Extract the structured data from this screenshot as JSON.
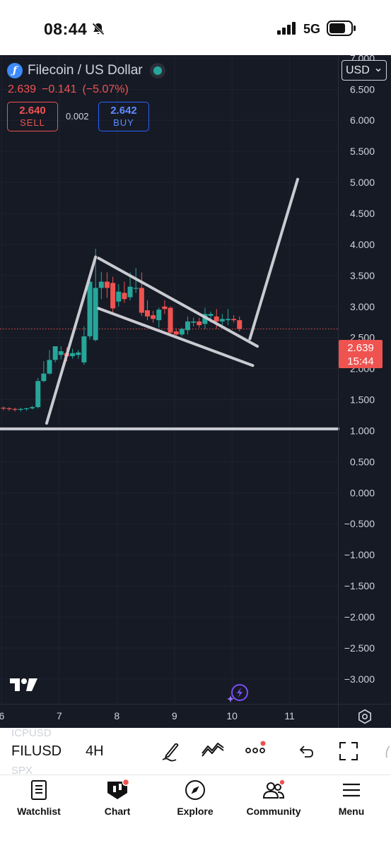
{
  "status_bar": {
    "time": "08:44",
    "network": "5G"
  },
  "header": {
    "symbol_title": "Filecoin / US Dollar",
    "coin_icon": "filecoin-icon",
    "last_price": "2.639",
    "change": "−0.141",
    "change_percent": "(−5.07%)",
    "sell_price": "2.640",
    "sell_label": "SELL",
    "spread": "0.002",
    "buy_price": "2.642",
    "buy_label": "BUY",
    "currency": "USD"
  },
  "price_tag": {
    "price": "2.639",
    "countdown": "15:44"
  },
  "chart_data": {
    "type": "candlestick",
    "x_axis_labels": [
      {
        "x": 6,
        "label": "6"
      },
      {
        "x": 7,
        "label": "7"
      },
      {
        "x": 8,
        "label": "8"
      },
      {
        "x": 9,
        "label": "9"
      },
      {
        "x": 10,
        "label": "10"
      },
      {
        "x": 11,
        "label": "11"
      }
    ],
    "y_ticks": [
      {
        "value": 7.0,
        "label": "7.000"
      },
      {
        "value": 6.5,
        "label": "6.500"
      },
      {
        "value": 6.0,
        "label": "6.000"
      },
      {
        "value": 5.5,
        "label": "5.500"
      },
      {
        "value": 5.0,
        "label": "5.000"
      },
      {
        "value": 4.5,
        "label": "4.500"
      },
      {
        "value": 4.0,
        "label": "4.000"
      },
      {
        "value": 3.5,
        "label": "3.500"
      },
      {
        "value": 3.0,
        "label": "3.000"
      },
      {
        "value": 2.5,
        "label": "2.500"
      },
      {
        "value": 2.0,
        "label": "2.000"
      },
      {
        "value": 1.5,
        "label": "1.500"
      },
      {
        "value": 1.0,
        "label": "1.000"
      },
      {
        "value": 0.5,
        "label": "0.500"
      },
      {
        "value": 0.0,
        "label": "0.000"
      },
      {
        "value": -0.5,
        "label": "−0.500"
      },
      {
        "value": -1.0,
        "label": "−1.000"
      },
      {
        "value": -1.5,
        "label": "−1.500"
      },
      {
        "value": -2.0,
        "label": "−2.000"
      },
      {
        "value": -2.5,
        "label": "−2.500"
      },
      {
        "value": -3.0,
        "label": "−3.000"
      }
    ],
    "ylim": [
      -3.4,
      7.05
    ],
    "xlim": [
      5.97,
      11.84
    ],
    "grid": true,
    "up_color": "#26a69a",
    "down_color": "#ef5350",
    "candles": [
      {
        "t": 6.03,
        "o": 1.37,
        "h": 1.39,
        "l": 1.33,
        "c": 1.36
      },
      {
        "t": 6.13,
        "o": 1.36,
        "h": 1.38,
        "l": 1.32,
        "c": 1.35
      },
      {
        "t": 6.23,
        "o": 1.35,
        "h": 1.37,
        "l": 1.31,
        "c": 1.34
      },
      {
        "t": 6.33,
        "o": 1.34,
        "h": 1.37,
        "l": 1.31,
        "c": 1.35
      },
      {
        "t": 6.43,
        "o": 1.35,
        "h": 1.37,
        "l": 1.32,
        "c": 1.36
      },
      {
        "t": 6.53,
        "o": 1.36,
        "h": 1.4,
        "l": 1.34,
        "c": 1.38
      },
      {
        "t": 6.63,
        "o": 1.38,
        "h": 1.85,
        "l": 1.36,
        "c": 1.8
      },
      {
        "t": 6.73,
        "o": 1.8,
        "h": 2.12,
        "l": 1.78,
        "c": 1.92
      },
      {
        "t": 6.83,
        "o": 1.92,
        "h": 2.3,
        "l": 1.9,
        "c": 2.14
      },
      {
        "t": 6.93,
        "o": 2.14,
        "h": 2.35,
        "l": 2.1,
        "c": 2.36
      },
      {
        "t": 7.03,
        "o": 2.22,
        "h": 2.36,
        "l": 2.15,
        "c": 2.28
      },
      {
        "t": 7.13,
        "o": 2.25,
        "h": 2.34,
        "l": 2.12,
        "c": 2.2
      },
      {
        "t": 7.23,
        "o": 2.2,
        "h": 2.32,
        "l": 2.16,
        "c": 2.25
      },
      {
        "t": 7.33,
        "o": 2.22,
        "h": 2.3,
        "l": 2.16,
        "c": 2.26
      },
      {
        "t": 7.43,
        "o": 2.1,
        "h": 2.68,
        "l": 2.06,
        "c": 2.52
      },
      {
        "t": 7.53,
        "o": 2.52,
        "h": 3.45,
        "l": 2.47,
        "c": 3.4
      },
      {
        "t": 7.63,
        "o": 2.46,
        "h": 3.93,
        "l": 2.44,
        "c": 3.3
      },
      {
        "t": 7.73,
        "o": 3.3,
        "h": 3.56,
        "l": 3.12,
        "c": 3.4
      },
      {
        "t": 7.83,
        "o": 3.4,
        "h": 3.55,
        "l": 3.14,
        "c": 3.3
      },
      {
        "t": 7.93,
        "o": 3.38,
        "h": 3.48,
        "l": 2.9,
        "c": 2.97
      },
      {
        "t": 8.03,
        "o": 3.08,
        "h": 3.36,
        "l": 3.0,
        "c": 3.24
      },
      {
        "t": 8.13,
        "o": 3.22,
        "h": 3.4,
        "l": 3.06,
        "c": 3.12
      },
      {
        "t": 8.23,
        "o": 3.15,
        "h": 3.55,
        "l": 3.1,
        "c": 3.32
      },
      {
        "t": 8.33,
        "o": 3.3,
        "h": 3.62,
        "l": 3.22,
        "c": 3.3
      },
      {
        "t": 8.43,
        "o": 3.3,
        "h": 3.55,
        "l": 2.85,
        "c": 2.9
      },
      {
        "t": 8.53,
        "o": 2.94,
        "h": 3.1,
        "l": 2.78,
        "c": 2.84
      },
      {
        "t": 8.63,
        "o": 2.86,
        "h": 2.93,
        "l": 2.74,
        "c": 2.8
      },
      {
        "t": 8.73,
        "o": 2.78,
        "h": 2.98,
        "l": 2.66,
        "c": 2.95
      },
      {
        "t": 8.83,
        "o": 3.0,
        "h": 3.1,
        "l": 2.88,
        "c": 2.96
      },
      {
        "t": 8.93,
        "o": 2.98,
        "h": 3.0,
        "l": 2.55,
        "c": 2.58
      },
      {
        "t": 9.03,
        "o": 2.6,
        "h": 2.65,
        "l": 2.48,
        "c": 2.55
      },
      {
        "t": 9.13,
        "o": 2.55,
        "h": 2.66,
        "l": 2.52,
        "c": 2.64
      },
      {
        "t": 9.23,
        "o": 2.62,
        "h": 2.84,
        "l": 2.55,
        "c": 2.76
      },
      {
        "t": 9.33,
        "o": 2.74,
        "h": 2.82,
        "l": 2.68,
        "c": 2.76
      },
      {
        "t": 9.43,
        "o": 2.76,
        "h": 2.82,
        "l": 2.66,
        "c": 2.7
      },
      {
        "t": 9.53,
        "o": 2.72,
        "h": 2.98,
        "l": 2.64,
        "c": 2.88
      },
      {
        "t": 9.63,
        "o": 2.85,
        "h": 2.92,
        "l": 2.74,
        "c": 2.88
      },
      {
        "t": 9.73,
        "o": 2.84,
        "h": 2.96,
        "l": 2.64,
        "c": 2.76
      },
      {
        "t": 9.83,
        "o": 2.76,
        "h": 2.88,
        "l": 2.7,
        "c": 2.8
      },
      {
        "t": 9.93,
        "o": 2.78,
        "h": 2.96,
        "l": 2.7,
        "c": 2.8
      },
      {
        "t": 10.03,
        "o": 2.8,
        "h": 2.86,
        "l": 2.74,
        "c": 2.78
      },
      {
        "t": 10.13,
        "o": 2.78,
        "h": 2.84,
        "l": 2.6,
        "c": 2.64
      }
    ],
    "drawings": [
      {
        "name": "flagpole-line",
        "points": [
          [
            6.78,
            1.12
          ],
          [
            7.63,
            3.8
          ]
        ]
      },
      {
        "name": "flag-upper-line",
        "points": [
          [
            7.68,
            3.78
          ],
          [
            10.44,
            2.36
          ]
        ]
      },
      {
        "name": "flag-lower-line",
        "points": [
          [
            7.68,
            2.97
          ],
          [
            10.36,
            2.05
          ]
        ]
      },
      {
        "name": "breakout-line",
        "points": [
          [
            10.31,
            2.48
          ],
          [
            11.14,
            5.05
          ]
        ]
      },
      {
        "name": "support-line",
        "points": [
          [
            5.97,
            1.03
          ],
          [
            11.84,
            1.03
          ]
        ]
      }
    ],
    "last_price": 2.639
  },
  "toolbar": {
    "symbol": "FILUSD",
    "interval": "4H",
    "ghost_above": "ICPUSD",
    "ghost_below": "SPX"
  },
  "bottom_nav": {
    "items": [
      {
        "label": "Watchlist",
        "icon": "watchlist-icon"
      },
      {
        "label": "Chart",
        "icon": "chart-icon"
      },
      {
        "label": "Explore",
        "icon": "compass-icon"
      },
      {
        "label": "Community",
        "icon": "community-icon"
      },
      {
        "label": "Menu",
        "icon": "menu-icon"
      }
    ]
  }
}
